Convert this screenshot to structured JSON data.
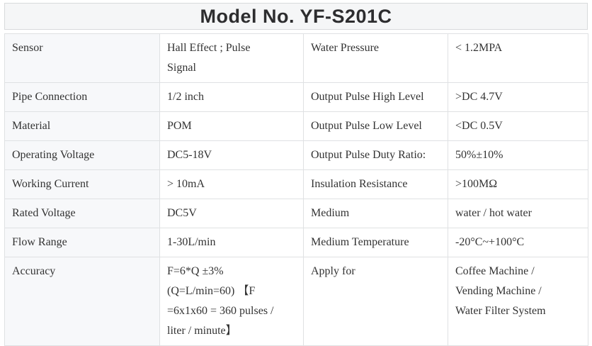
{
  "title": "Model No. YF-S201C",
  "colors": {
    "title_bg": "#f5f6f7",
    "label_column_bg": "#f7f8fa",
    "border": "#dfe1e3",
    "body_text": "#333333",
    "title_text": "#2d2d2f"
  },
  "table": {
    "rows": [
      {
        "cells": [
          {
            "lines": [
              "Sensor"
            ]
          },
          {
            "lines": [
              "Hall Effect ; Pulse",
              "Signal"
            ]
          },
          {
            "lines": [
              "Water Pressure"
            ]
          },
          {
            "lines": [
              "< 1.2MPA"
            ]
          }
        ]
      },
      {
        "cells": [
          {
            "lines": [
              "Pipe Connection"
            ]
          },
          {
            "lines": [
              "1/2 inch"
            ]
          },
          {
            "lines": [
              "Output Pulse High Level"
            ]
          },
          {
            "lines": [
              ">DC 4.7V"
            ]
          }
        ]
      },
      {
        "cells": [
          {
            "lines": [
              "Material"
            ]
          },
          {
            "lines": [
              "POM"
            ]
          },
          {
            "lines": [
              "Output Pulse Low Level"
            ]
          },
          {
            "lines": [
              "<DC 0.5V"
            ]
          }
        ]
      },
      {
        "cells": [
          {
            "lines": [
              "Operating Voltage"
            ]
          },
          {
            "lines": [
              "DC5-18V"
            ]
          },
          {
            "lines": [
              "Output Pulse Duty Ratio:"
            ]
          },
          {
            "lines": [
              "50%±10%"
            ]
          }
        ]
      },
      {
        "cells": [
          {
            "lines": [
              "Working Current"
            ]
          },
          {
            "lines": [
              "> 10mA"
            ]
          },
          {
            "lines": [
              "Insulation Resistance"
            ]
          },
          {
            "lines": [
              ">100MΩ"
            ]
          }
        ]
      },
      {
        "cells": [
          {
            "lines": [
              "Rated Voltage"
            ]
          },
          {
            "lines": [
              "DC5V"
            ]
          },
          {
            "lines": [
              "Medium"
            ]
          },
          {
            "lines": [
              "water / hot water"
            ]
          }
        ]
      },
      {
        "cells": [
          {
            "lines": [
              "Flow Range"
            ]
          },
          {
            "lines": [
              "1-30L/min"
            ]
          },
          {
            "lines": [
              "Medium Temperature"
            ]
          },
          {
            "lines": [
              "-20°C~+100°C"
            ]
          }
        ]
      },
      {
        "cells": [
          {
            "lines": [
              "Accuracy"
            ]
          },
          {
            "lines": [
              "F=6*Q ±3%",
              "(Q=L/min=60) 【F",
              "=6x1x60 = 360 pulses /",
              "liter / minute】"
            ]
          },
          {
            "lines": [
              "Apply for"
            ]
          },
          {
            "lines": [
              "Coffee Machine /",
              "Vending Machine /",
              "Water Filter System"
            ]
          }
        ]
      }
    ]
  }
}
